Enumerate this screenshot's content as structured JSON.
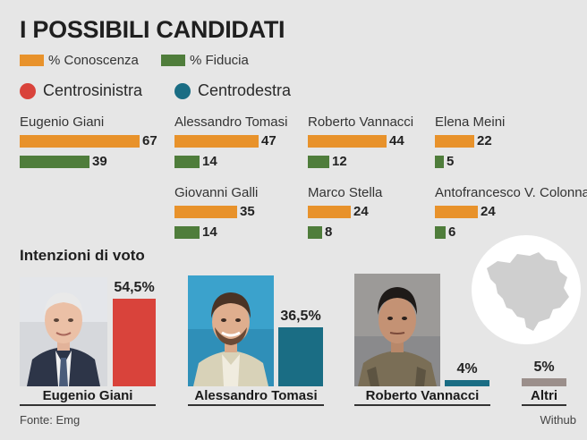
{
  "title": "I POSSIBILI CANDIDATI",
  "legend": [
    {
      "label": "% Conoscenza",
      "color": "#e8922b"
    },
    {
      "label": "% Fiducia",
      "color": "#4f7d3b"
    }
  ],
  "coalitions": [
    {
      "label": "Centrosinistra",
      "color": "#d9433b"
    },
    {
      "label": "Centrodestra",
      "color": "#1a6d84"
    }
  ],
  "section_title": "Intenzioni di voto",
  "footer": {
    "source": "Fonte: Emg",
    "credit": "Withub"
  },
  "chart_data": [
    {
      "type": "bar",
      "title": "I POSSIBILI CANDIDATI",
      "orientation": "horizontal",
      "series": [
        {
          "name": "% Conoscenza",
          "color": "#e8922b"
        },
        {
          "name": "% Fiducia",
          "color": "#4f7d3b"
        }
      ],
      "candidates": [
        {
          "name": "Eugenio Giani",
          "coalition": "Centrosinistra",
          "conoscenza": 67,
          "fiducia": 39
        },
        {
          "name": "Alessandro Tomasi",
          "coalition": "Centrodestra",
          "conoscenza": 47,
          "fiducia": 14
        },
        {
          "name": "Roberto Vannacci",
          "coalition": "Centrodestra",
          "conoscenza": 44,
          "fiducia": 12
        },
        {
          "name": "Elena Meini",
          "coalition": "Centrodestra",
          "conoscenza": 22,
          "fiducia": 5
        },
        {
          "name": "Giovanni Galli",
          "coalition": "Centrodestra",
          "conoscenza": 35,
          "fiducia": 14
        },
        {
          "name": "Marco Stella",
          "coalition": "Centrodestra",
          "conoscenza": 24,
          "fiducia": 8
        },
        {
          "name": "Antofrancesco V. Colonna",
          "coalition": "Centrodestra",
          "conoscenza": 24,
          "fiducia": 6
        }
      ]
    },
    {
      "type": "bar",
      "title": "Intenzioni di voto",
      "orientation": "vertical",
      "categories": [
        "Eugenio Giani",
        "Alessandro Tomasi",
        "Roberto Vannacci",
        "Altri"
      ],
      "values": [
        54.5,
        36.5,
        4,
        5
      ],
      "value_labels": [
        "54,5%",
        "36,5%",
        "4%",
        "5%"
      ],
      "colors": [
        "#d9433b",
        "#1a6d84",
        "#1a6d84",
        "#9b8f8b"
      ]
    }
  ]
}
